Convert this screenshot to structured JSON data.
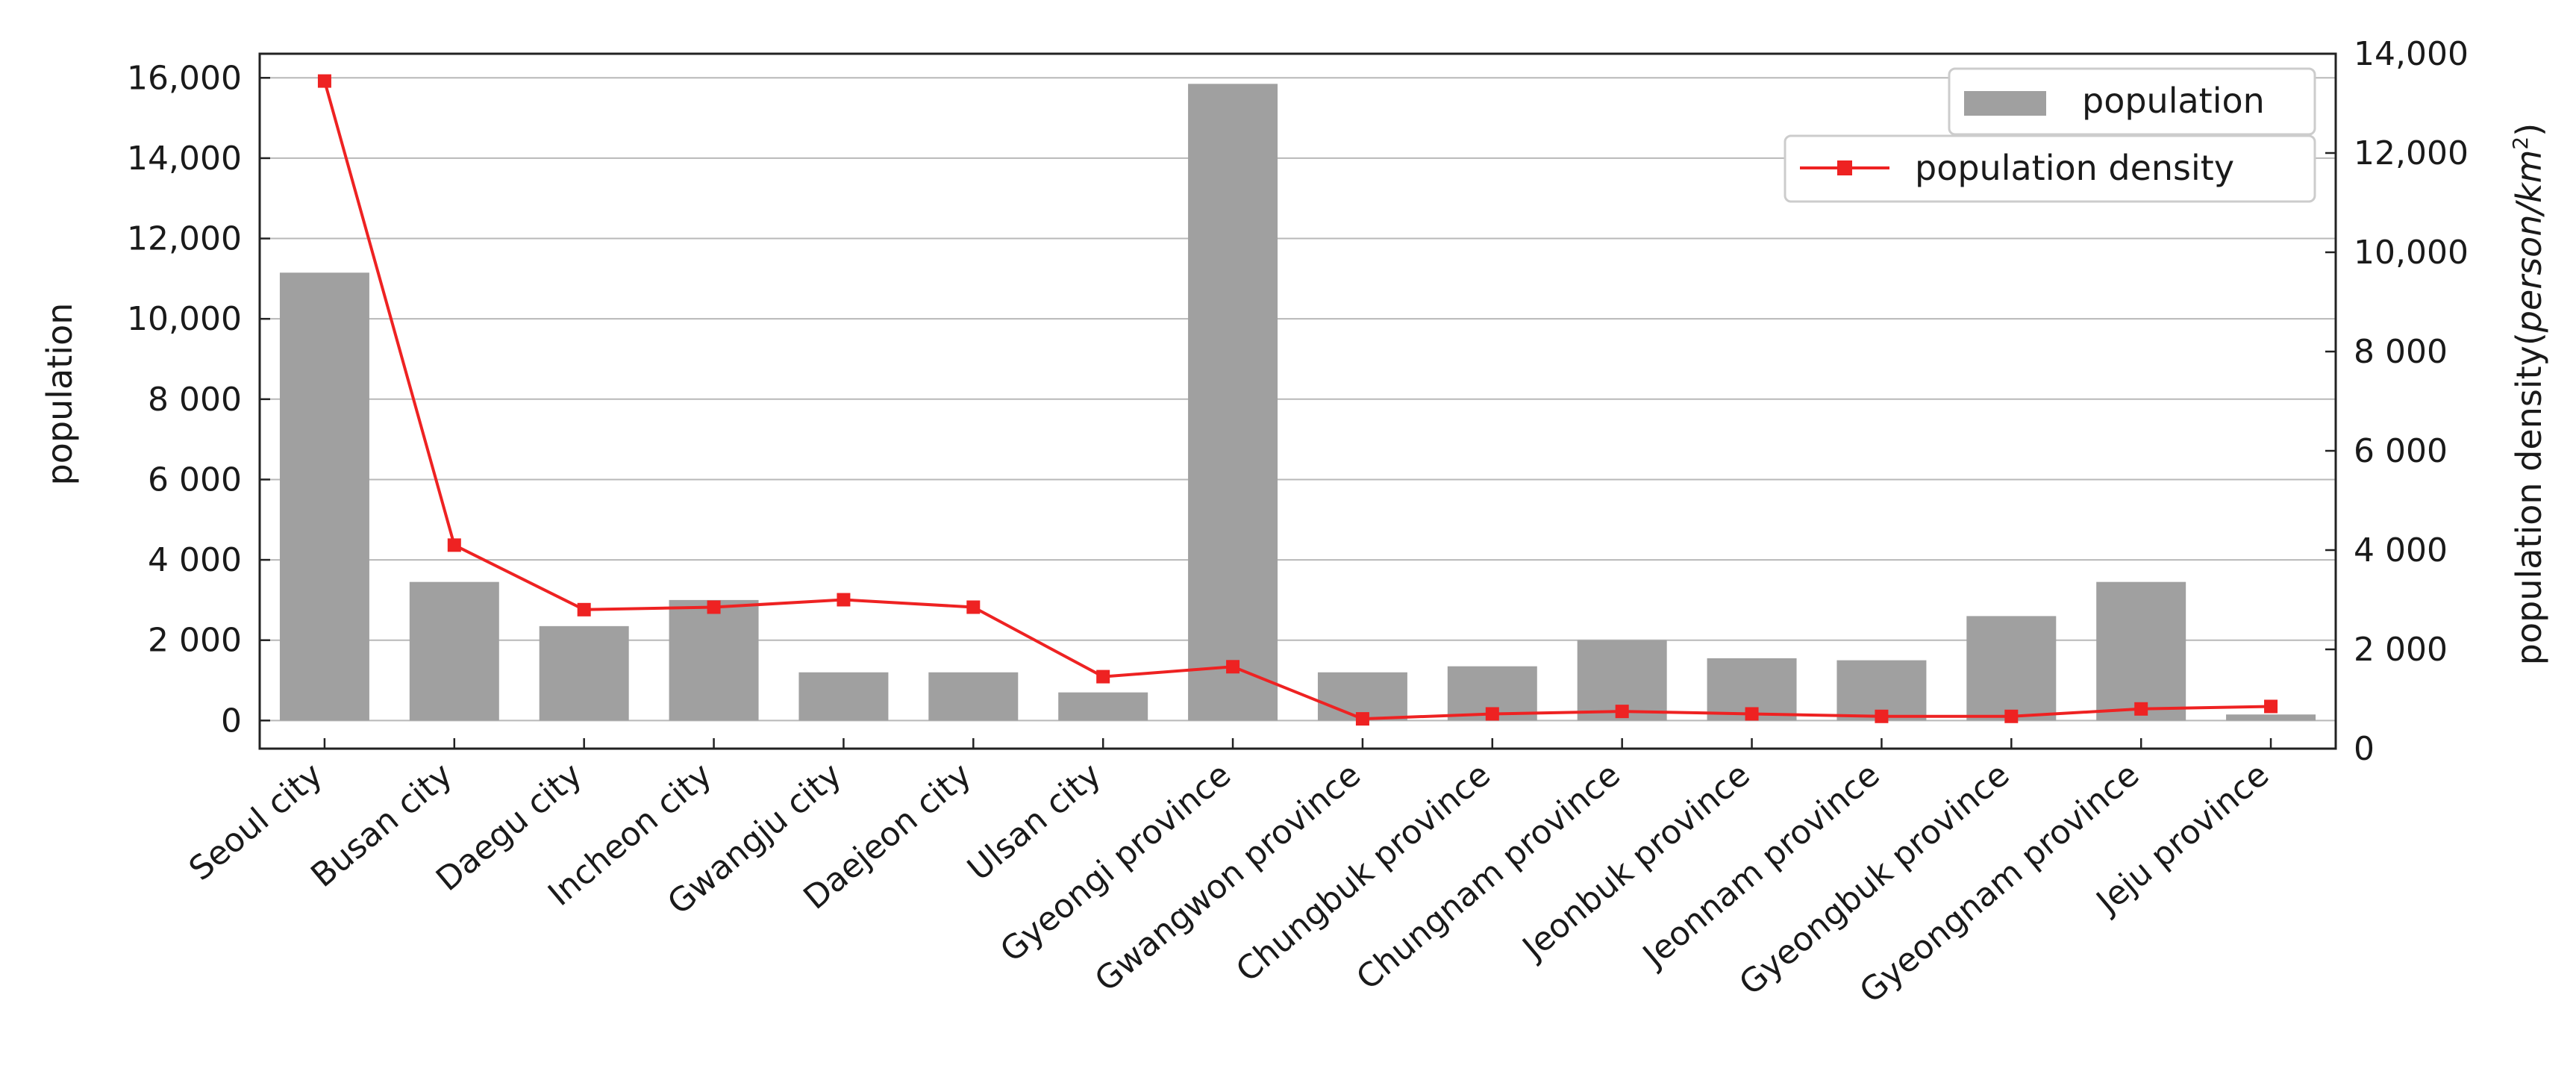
{
  "chart_data": {
    "type": "bar",
    "categories": [
      "Seoul city",
      "Busan city",
      "Daegu city",
      "Incheon city",
      "Gwangju city",
      "Daejeon city",
      "Ulsan city",
      "Gyeongi province",
      "Gwangwon province",
      "Chungbuk province",
      "Chungnam province",
      "Jeonbuk province",
      "Jeonnam province",
      "Gyeongbuk province",
      "Gyeongnam province",
      "Jeju province"
    ],
    "series": [
      {
        "name": "population",
        "type": "bar",
        "axis": "left",
        "color": "#a0a0a0",
        "values": [
          11150,
          3450,
          2350,
          3000,
          1200,
          1200,
          700,
          15850,
          1200,
          1350,
          2000,
          1550,
          1500,
          2600,
          3450,
          150
        ]
      },
      {
        "name": "population density",
        "type": "line",
        "axis": "right",
        "marker": "square",
        "color": "#ee2222",
        "values": [
          13450,
          4100,
          2800,
          2850,
          3000,
          2850,
          1450,
          1650,
          600,
          700,
          750,
          700,
          650,
          650,
          800,
          850
        ]
      }
    ],
    "xlabel": "",
    "ylabel": "population",
    "y2label_main": "population density(",
    "y2label_unit": "person/km",
    "y2label_sup": "2",
    "y2label_close": ")",
    "ylim": [
      -700,
      16600
    ],
    "y2lim": [
      0,
      14000
    ],
    "yticks": [
      {
        "value": 0,
        "label": "0"
      },
      {
        "value": 2000,
        "label": "2 000"
      },
      {
        "value": 4000,
        "label": "4 000"
      },
      {
        "value": 6000,
        "label": "6 000"
      },
      {
        "value": 8000,
        "label": "8 000"
      },
      {
        "value": 10000,
        "label": "10,000"
      },
      {
        "value": 12000,
        "label": "12,000"
      },
      {
        "value": 14000,
        "label": "14,000"
      },
      {
        "value": 16000,
        "label": "16,000"
      }
    ],
    "y2ticks": [
      {
        "value": 0,
        "label": "0"
      },
      {
        "value": 2000,
        "label": "2 000"
      },
      {
        "value": 4000,
        "label": "4 000"
      },
      {
        "value": 6000,
        "label": "6 000"
      },
      {
        "value": 8000,
        "label": "8 000"
      },
      {
        "value": 10000,
        "label": "10,000"
      },
      {
        "value": 12000,
        "label": "12,000"
      },
      {
        "value": 14000,
        "label": "14,000"
      }
    ],
    "grid": true,
    "legend": "top-right"
  }
}
